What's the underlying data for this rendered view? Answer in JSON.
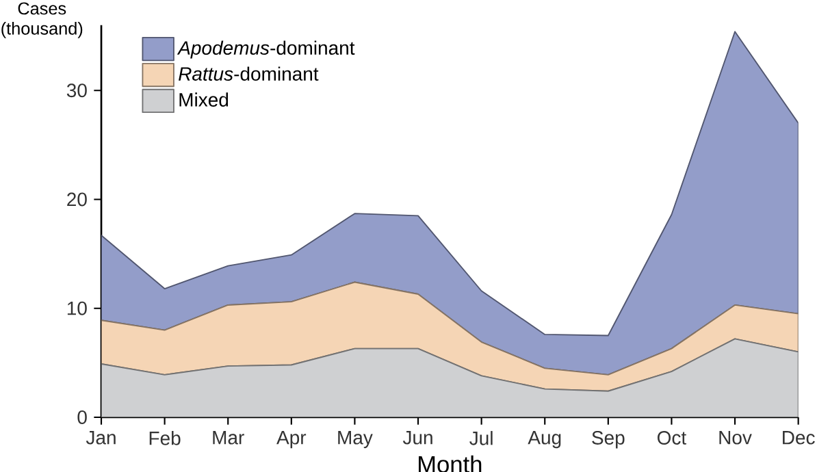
{
  "chart_data": {
    "type": "area",
    "stacked": true,
    "xlabel": "Month",
    "ylabel": "Cases (thousand)",
    "categories": [
      "Jan",
      "Feb",
      "Mar",
      "Apr",
      "May",
      "Jun",
      "Jul",
      "Aug",
      "Sep",
      "Oct",
      "Nov",
      "Dec"
    ],
    "series": [
      {
        "name": "Mixed",
        "color": "#cfd0d2",
        "values": [
          4.9,
          3.9,
          4.7,
          4.8,
          6.3,
          6.3,
          3.8,
          2.6,
          2.4,
          4.2,
          7.2,
          6.0
        ]
      },
      {
        "name": "*Rattus*-dominant",
        "color": "#f5d5b5",
        "values": [
          4.0,
          4.1,
          5.6,
          5.8,
          6.1,
          5.0,
          3.1,
          1.9,
          1.5,
          2.1,
          3.1,
          3.5
        ]
      },
      {
        "name": "*Apodemus*-dominant",
        "color": "#939dc9",
        "values": [
          7.8,
          3.8,
          3.6,
          4.3,
          6.3,
          7.2,
          4.7,
          3.1,
          3.6,
          12.3,
          25.1,
          17.5
        ]
      }
    ],
    "ylim": [
      0,
      36
    ],
    "yticks": [
      0,
      10,
      20,
      30
    ],
    "grid": false,
    "legend": "top left"
  }
}
